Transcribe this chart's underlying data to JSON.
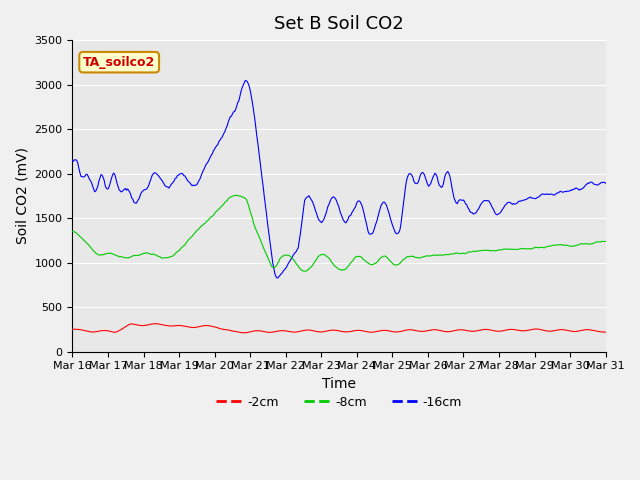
{
  "title": "Set B Soil CO2",
  "ylabel": "Soil CO2 (mV)",
  "xlabel": "Time",
  "annotation": "TA_soilco2",
  "ylim": [
    0,
    3500
  ],
  "xlim_days": [
    0,
    21
  ],
  "x_tick_labels": [
    "Mar 16",
    "Mar 17",
    "Mar 18",
    "Mar 19",
    "Mar 20",
    "Mar 21",
    "Mar 22",
    "Mar 23",
    "Mar 24",
    "Mar 25",
    "Mar 26",
    "Mar 27",
    "Mar 28",
    "Mar 29",
    "Mar 30",
    "Mar 31"
  ],
  "legend_labels": [
    "-2cm",
    "-8cm",
    "-16cm"
  ],
  "legend_colors": [
    "#ff0000",
    "#00cc00",
    "#0000ff"
  ],
  "color_2cm": "#ff0000",
  "color_8cm": "#00cc00",
  "color_16cm": "#0000ff",
  "bg_color": "#e8e8e8",
  "annotation_bg": "#ffffcc",
  "annotation_border": "#cc8800",
  "annotation_text_color": "#cc0000",
  "title_fontsize": 13,
  "axis_label_fontsize": 10,
  "tick_fontsize": 8,
  "legend_fontsize": 9
}
